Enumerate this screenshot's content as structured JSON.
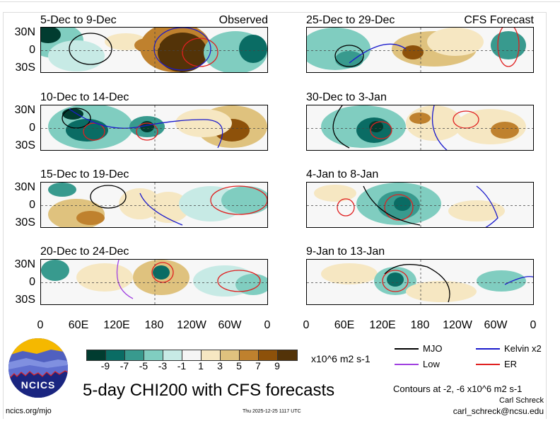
{
  "figure": {
    "main_title": "5-day CHI200 with CFS forecasts",
    "timestamp": "Thu 2025-12-25 1117 UTC",
    "website": "ncics.org/mjo",
    "logo_text": "NCICS",
    "author": "Carl Schreck",
    "email": "carl_schreck@ncsu.edu",
    "contour_note": "Contours at -2, -6 x10^6 m2 s-1"
  },
  "axes": {
    "lat_labels": [
      "30N",
      "0",
      "30S"
    ],
    "lon_labels": [
      "0",
      "60E",
      "120E",
      "180",
      "120W",
      "60W",
      "0"
    ]
  },
  "columns": [
    {
      "tag": "Observed",
      "panels": [
        {
          "title": "5-Dec to 9-Dec"
        },
        {
          "title": "10-Dec to 14-Dec"
        },
        {
          "title": "15-Dec to 19-Dec"
        },
        {
          "title": "20-Dec to 24-Dec"
        }
      ]
    },
    {
      "tag": "CFS Forecast",
      "panels": [
        {
          "title": "25-Dec to 29-Dec"
        },
        {
          "title": "30-Dec to 3-Jan"
        },
        {
          "title": "4-Jan to 8-Jan"
        },
        {
          "title": "9-Jan to 13-Jan"
        }
      ]
    }
  ],
  "colorbar": {
    "units": "x10^6 m2 s-1",
    "tick_labels": [
      "-9",
      "-7",
      "-5",
      "-3",
      "-1",
      "1",
      "3",
      "5",
      "7",
      "9"
    ],
    "colors": [
      "#013c30",
      "#0a6c64",
      "#389a8e",
      "#80cdc0",
      "#c7eae5",
      "#f5f5f5",
      "#f6e7c2",
      "#dfc27e",
      "#bf812e",
      "#8d510a",
      "#533308"
    ]
  },
  "legend": {
    "items": [
      {
        "label": "MJO",
        "color": "#000000"
      },
      {
        "label": "Kelvin x2",
        "color": "#1a1acc"
      },
      {
        "label": "Low",
        "color": "#a040e0"
      },
      {
        "label": "ER",
        "color": "#e02020"
      }
    ]
  }
}
